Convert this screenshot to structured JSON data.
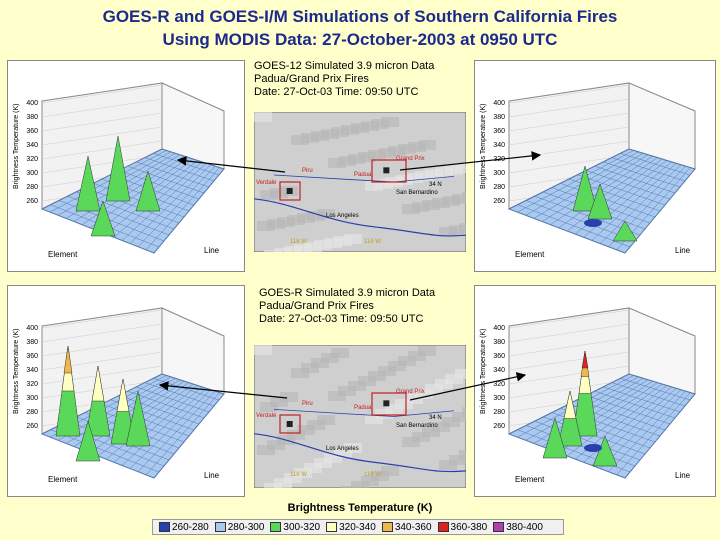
{
  "title_line1": "GOES-R and GOES-I/M Simulations of Southern California Fires",
  "title_line2": "Using MODIS Data:  27-October-2003 at 0950 UTC",
  "top": {
    "caption": [
      "GOES-12 Simulated 3.9 micron Data",
      "Padua/Grand Prix Fires",
      "Date: 27-Oct-03   Time:  09:50 UTC"
    ],
    "left_plot": {
      "ylabel": "Brightness Temperature (K)",
      "ticks": [
        "400",
        "380",
        "360",
        "340",
        "320",
        "300",
        "280",
        "260"
      ],
      "xlabel": "Element",
      "xlabel2": "Line"
    },
    "right_plot": {
      "ylabel": "Brightness Temperature (K)",
      "ticks": [
        "400",
        "380",
        "360",
        "340",
        "320",
        "300",
        "280",
        "260"
      ],
      "xlabel": "Element",
      "xlabel2": "Line"
    },
    "map": {
      "labels": [
        "Piru",
        "Verdale",
        "Padua",
        "Grand Prix",
        "San Bernardino",
        "Los Angeles",
        "34 N",
        "118 W",
        "118 W"
      ]
    }
  },
  "bottom": {
    "caption": [
      "GOES-R Simulated 3.9 micron Data",
      "Padua/Grand Prix Fires",
      "Date: 27-Oct-03   Time:  09:50 UTC"
    ],
    "left_plot": {
      "ylabel": "Brightness Temperature (K)",
      "ticks": [
        "400",
        "380",
        "360",
        "340",
        "320",
        "300",
        "280",
        "260"
      ],
      "xlabel": "Element",
      "xlabel2": "Line"
    },
    "right_plot": {
      "ylabel": "Brightness Temperature (K)",
      "ticks": [
        "400",
        "380",
        "360",
        "340",
        "320",
        "300",
        "280",
        "260"
      ],
      "xlabel": "Element",
      "xlabel2": "Line"
    },
    "map": {
      "labels": [
        "Piru",
        "Verdale",
        "Padua",
        "Grand Prix",
        "San Bernardino",
        "Los Angeles",
        "34 N",
        "118 W",
        "118 W"
      ]
    }
  },
  "legend": {
    "label": "Brightness Temperature (K)",
    "items": [
      {
        "range": "260-280",
        "color": "#2a3fae"
      },
      {
        "range": "280-300",
        "color": "#a9c9f0"
      },
      {
        "range": "300-320",
        "color": "#5ad85a"
      },
      {
        "range": "320-340",
        "color": "#ffffc0"
      },
      {
        "range": "340-360",
        "color": "#f0b84a"
      },
      {
        "range": "360-380",
        "color": "#e02020"
      },
      {
        "range": "380-400",
        "color": "#b040b0"
      }
    ]
  }
}
